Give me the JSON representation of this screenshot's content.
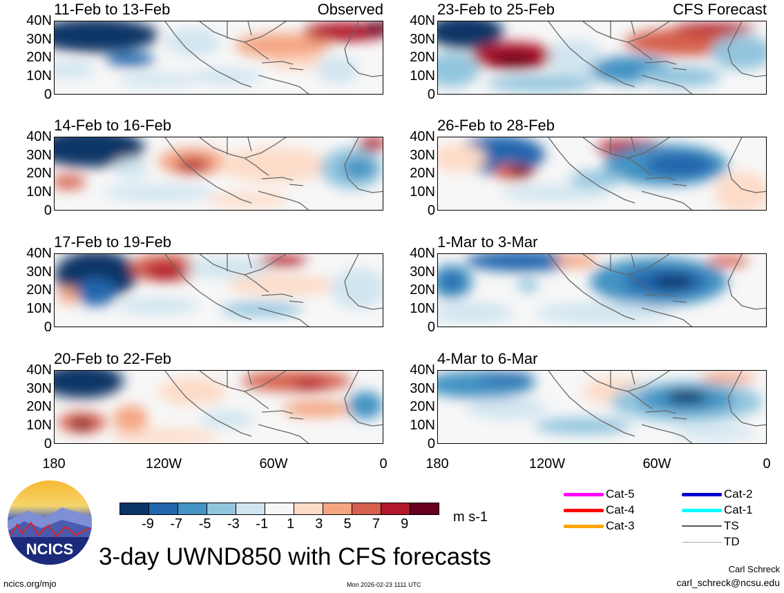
{
  "title": "3-day UWND850 with CFS forecasts",
  "panels": [
    {
      "id": "p1",
      "date": "11-Feb to 13-Feb",
      "label": "Observed"
    },
    {
      "id": "p2",
      "date": "14-Feb to 16-Feb",
      "label": ""
    },
    {
      "id": "p3",
      "date": "17-Feb to 19-Feb",
      "label": ""
    },
    {
      "id": "p4",
      "date": "20-Feb to 22-Feb",
      "label": ""
    },
    {
      "id": "p5",
      "date": "23-Feb to 25-Feb",
      "label": "CFS Forecast"
    },
    {
      "id": "p6",
      "date": "26-Feb to 28-Feb",
      "label": ""
    },
    {
      "id": "p7",
      "date": "1-Mar to 3-Mar",
      "label": ""
    },
    {
      "id": "p8",
      "date": "4-Mar to 6-Mar",
      "label": ""
    }
  ],
  "y_ticks": [
    "40N",
    "30N",
    "20N",
    "10N",
    "0"
  ],
  "x_ticks": [
    "180",
    "120W",
    "60W",
    "0"
  ],
  "colorbar": {
    "units": "m s-1",
    "labels": [
      "-9",
      "-7",
      "-5",
      "-3",
      "-1",
      "1",
      "3",
      "5",
      "7",
      "9"
    ],
    "colors": [
      "#0b3466",
      "#2266ad",
      "#4393c3",
      "#92c5de",
      "#d1e5f0",
      "#f7f7f7",
      "#fddbc7",
      "#f4a582",
      "#d6604d",
      "#b2182b",
      "#67001f"
    ]
  },
  "storm_legend": [
    {
      "label": "Cat-5",
      "color": "#ff00ff"
    },
    {
      "label": "Cat-4",
      "color": "#ff0000"
    },
    {
      "label": "Cat-3",
      "color": "#ffa500"
    },
    {
      "label": "Cat-2",
      "color": "#0000cc"
    },
    {
      "label": "Cat-1",
      "color": "#00ffff"
    },
    {
      "label": "TS",
      "color": "#555555"
    },
    {
      "label": "TD",
      "color": "#aaaaaa"
    }
  ],
  "logo": {
    "text": "NCICS"
  },
  "footer": {
    "url": "ncics.org/mjo",
    "timestamp": "Mon 2026-02-23 1111 UTC",
    "author": "Carl Schreck",
    "email": "carl_schreck@ncsu.edu"
  }
}
